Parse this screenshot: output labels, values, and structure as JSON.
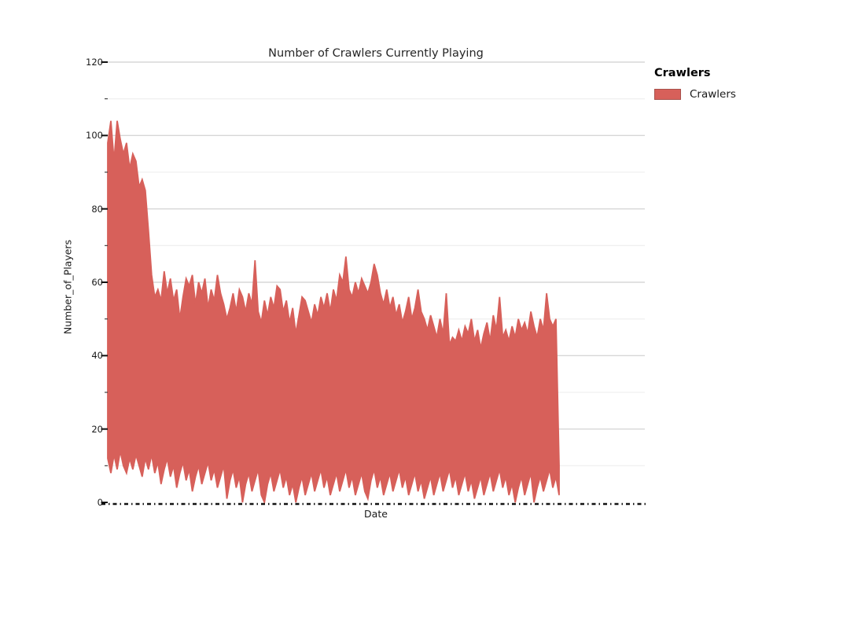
{
  "chart_data": {
    "type": "line",
    "title": "Number of Crawlers Currently Playing",
    "xlabel": "Date",
    "ylabel": "Number_of_Players",
    "ylim": [
      0,
      120
    ],
    "yticks_major": [
      0,
      20,
      40,
      60,
      80,
      100,
      120
    ],
    "yticks_minor": [
      10,
      30,
      50,
      70,
      90,
      110
    ],
    "xticklabels": [],
    "grid": "horizontal major and faint minor gridlines",
    "legend": {
      "position": "right",
      "title": "Crawlers",
      "entries": [
        {
          "label": "Crawlers",
          "color": "#d7605a"
        }
      ]
    },
    "colors": {
      "series": "#d7605a",
      "swatch_edge": "#a8524d",
      "grid_major": "#d7d7d7",
      "grid_minor": "#eeeeee",
      "axis": "#111111",
      "text": "#1a1a1a"
    },
    "series": [
      {
        "name": "Crawlers",
        "color": "#d7605a",
        "envelope_note": "Dense daily oscillation rendered as filled band; values sampled left-to-right at equal x steps. top = daily peak players, bottom = daily trough players.",
        "envelope": {
          "top": [
            98,
            104,
            93,
            104,
            99,
            95,
            98,
            91,
            95,
            93,
            86,
            88,
            85,
            74,
            62,
            56,
            58,
            55,
            63,
            57,
            61,
            55,
            58,
            50,
            56,
            61,
            59,
            62,
            54,
            60,
            57,
            61,
            53,
            58,
            55,
            62,
            57,
            54,
            50,
            53,
            57,
            52,
            58,
            56,
            52,
            57,
            54,
            66,
            52,
            49,
            55,
            51,
            56,
            53,
            59,
            58,
            52,
            55,
            49,
            53,
            46,
            51,
            56,
            55,
            52,
            49,
            54,
            51,
            56,
            53,
            57,
            52,
            58,
            55,
            62,
            60,
            67,
            58,
            56,
            60,
            57,
            61,
            59,
            57,
            60,
            65,
            62,
            57,
            54,
            58,
            53,
            56,
            51,
            54,
            49,
            52,
            56,
            50,
            53,
            58,
            52,
            50,
            47,
            51,
            48,
            45,
            50,
            46,
            57,
            43,
            45,
            44,
            47,
            44,
            48,
            46,
            50,
            44,
            47,
            42,
            46,
            49,
            44,
            51,
            47,
            56,
            45,
            47,
            44,
            48,
            45,
            50,
            47,
            49,
            46,
            52,
            48,
            45,
            50,
            47,
            57,
            50,
            48,
            50,
            10
          ],
          "bottom": [
            12,
            8,
            13,
            9,
            14,
            10,
            8,
            12,
            9,
            13,
            10,
            7,
            12,
            9,
            13,
            8,
            11,
            5,
            9,
            12,
            7,
            10,
            4,
            8,
            11,
            6,
            9,
            3,
            7,
            10,
            5,
            8,
            11,
            6,
            9,
            4,
            7,
            10,
            1,
            6,
            9,
            4,
            7,
            0,
            5,
            8,
            3,
            6,
            9,
            2,
            0,
            5,
            8,
            3,
            6,
            9,
            4,
            7,
            2,
            5,
            0,
            4,
            7,
            2,
            5,
            8,
            3,
            6,
            9,
            4,
            7,
            2,
            5,
            8,
            3,
            6,
            9,
            4,
            7,
            2,
            5,
            8,
            3,
            1,
            6,
            9,
            4,
            7,
            2,
            5,
            8,
            3,
            6,
            9,
            4,
            7,
            2,
            5,
            8,
            3,
            6,
            1,
            4,
            7,
            2,
            5,
            8,
            3,
            6,
            9,
            4,
            7,
            2,
            5,
            8,
            3,
            6,
            1,
            4,
            7,
            2,
            5,
            8,
            3,
            6,
            9,
            4,
            7,
            2,
            5,
            0,
            4,
            7,
            2,
            5,
            8,
            0,
            4,
            7,
            3,
            6,
            9,
            4,
            7,
            2
          ]
        }
      }
    ]
  }
}
